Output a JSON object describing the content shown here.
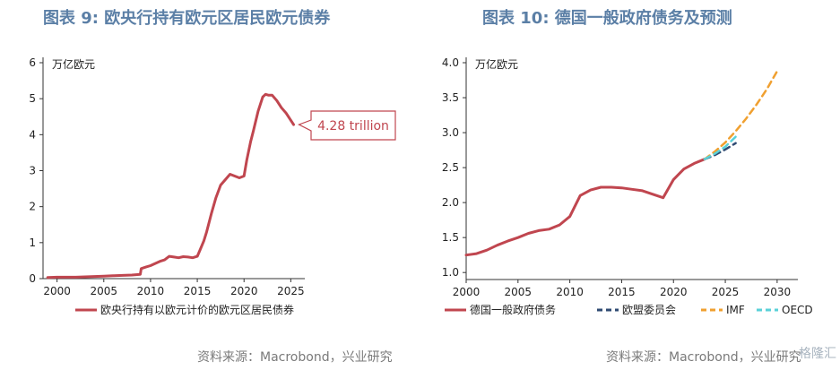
{
  "left": {
    "title": "图表 9:  欧央行持有欧元区居民欧元债券",
    "source": "资料来源：Macrobond，兴业研究",
    "chart_data": {
      "type": "line",
      "unit_label": "万亿欧元",
      "xlim": [
        1998.5,
        2026.5
      ],
      "ylim": [
        0,
        6
      ],
      "x_ticks": [
        2000,
        2005,
        2010,
        2015,
        2020,
        2025
      ],
      "y_ticks": [
        0,
        1,
        2,
        3,
        4,
        5,
        6
      ],
      "legend_position": "bottom",
      "series": [
        {
          "name": "欧央行持有以欧元计价的欧元区居民债券",
          "color": "#c0464f",
          "x": [
            1999,
            2000,
            2001,
            2002,
            2003,
            2004,
            2005,
            2006,
            2007,
            2008,
            2008.9,
            2009,
            2009.5,
            2010,
            2010.5,
            2011,
            2011.5,
            2012,
            2012.5,
            2013,
            2013.5,
            2014,
            2014.5,
            2015,
            2015.3,
            2015.7,
            2016,
            2016.5,
            2017,
            2017.5,
            2018,
            2018.5,
            2019,
            2019.5,
            2020,
            2020.3,
            2020.7,
            2021,
            2021.5,
            2022,
            2022.3,
            2022.6,
            2023,
            2023.5,
            2024,
            2024.5,
            2025,
            2025.3
          ],
          "values": [
            0.03,
            0.04,
            0.04,
            0.04,
            0.05,
            0.06,
            0.07,
            0.08,
            0.09,
            0.1,
            0.12,
            0.28,
            0.32,
            0.36,
            0.42,
            0.48,
            0.52,
            0.62,
            0.6,
            0.58,
            0.61,
            0.6,
            0.58,
            0.62,
            0.8,
            1.05,
            1.3,
            1.8,
            2.25,
            2.6,
            2.75,
            2.9,
            2.85,
            2.8,
            2.85,
            3.3,
            3.8,
            4.1,
            4.65,
            5.05,
            5.12,
            5.1,
            5.1,
            4.95,
            4.75,
            4.6,
            4.4,
            4.28
          ]
        }
      ],
      "annotation": {
        "text": "4.28 trillion",
        "x": 2025.3,
        "y": 4.28
      }
    }
  },
  "right": {
    "title": "图表 10: 德国一般政府债务及预测",
    "source": "资料来源：Macrobond，兴业研究",
    "watermark": "格隆汇",
    "chart_data": {
      "type": "line",
      "unit_label": "万亿欧元",
      "xlim": [
        2000,
        2032
      ],
      "ylim": [
        0.9,
        4.0
      ],
      "x_ticks": [
        2000,
        2005,
        2010,
        2015,
        2020,
        2025,
        2030
      ],
      "y_ticks": [
        1.0,
        1.5,
        2.0,
        2.5,
        3.0,
        3.5,
        4.0
      ],
      "legend_position": "bottom",
      "series": [
        {
          "name": "德国一般政府债务",
          "color": "#c0464f",
          "dash": "solid",
          "x": [
            2000,
            2001,
            2002,
            2003,
            2004,
            2005,
            2006,
            2007,
            2008,
            2009,
            2010,
            2011,
            2012,
            2013,
            2014,
            2015,
            2016,
            2017,
            2018,
            2019,
            2020,
            2021,
            2022,
            2023
          ],
          "values": [
            1.25,
            1.27,
            1.32,
            1.39,
            1.45,
            1.5,
            1.56,
            1.6,
            1.62,
            1.68,
            1.8,
            2.1,
            2.18,
            2.22,
            2.22,
            2.21,
            2.19,
            2.17,
            2.12,
            2.07,
            2.33,
            2.48,
            2.56,
            2.62
          ]
        },
        {
          "name": "欧盟委员会",
          "color": "#2f4b73",
          "dash": "dash",
          "x": [
            2023,
            2024,
            2025,
            2026
          ],
          "values": [
            2.62,
            2.68,
            2.76,
            2.85
          ]
        },
        {
          "name": "IMF",
          "color": "#f0a030",
          "dash": "dash",
          "x": [
            2023,
            2024,
            2025,
            2026,
            2027,
            2028,
            2029,
            2030
          ],
          "values": [
            2.62,
            2.73,
            2.86,
            3.02,
            3.2,
            3.4,
            3.62,
            3.88
          ]
        },
        {
          "name": "OECD",
          "color": "#5ad1d8",
          "dash": "dash",
          "x": [
            2023,
            2024,
            2025,
            2026
          ],
          "values": [
            2.62,
            2.7,
            2.8,
            2.94
          ]
        }
      ]
    }
  }
}
